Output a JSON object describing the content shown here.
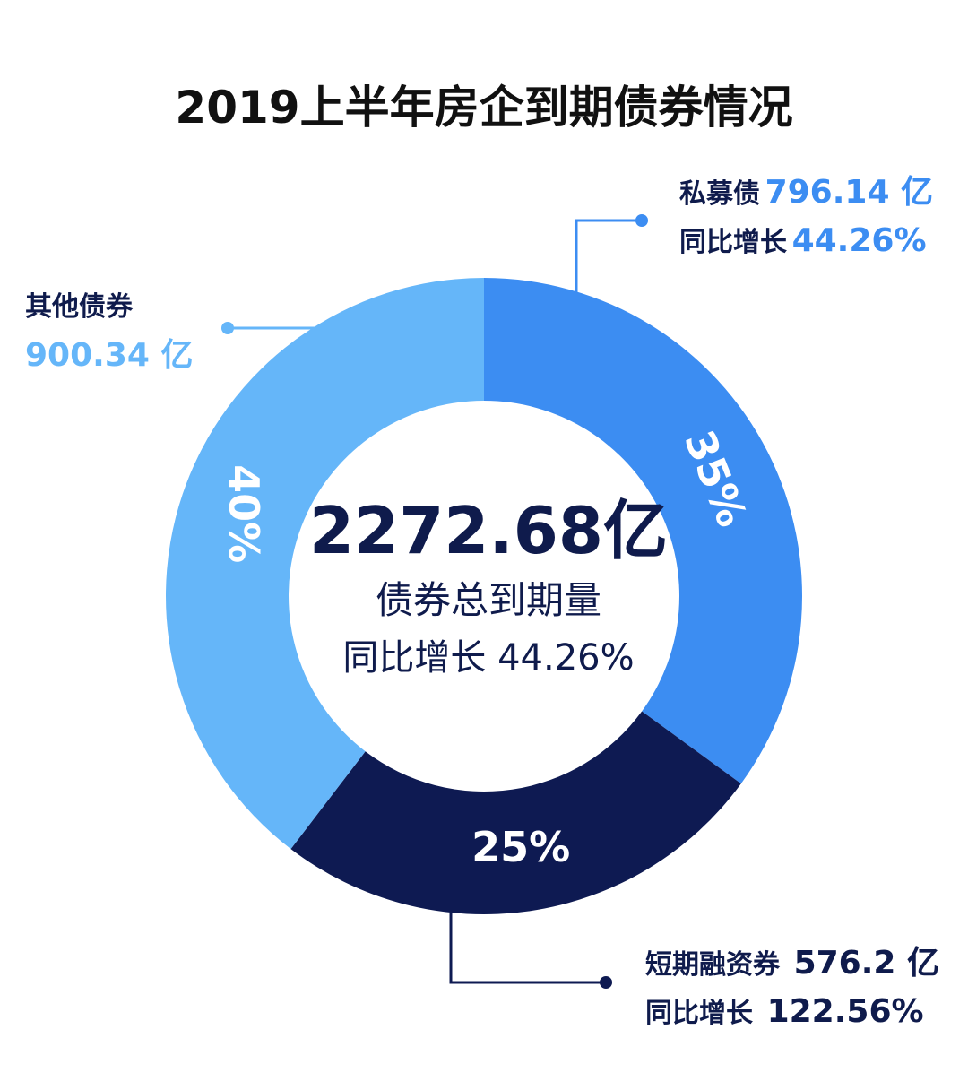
{
  "title": "2019上半年房企到期债券情况",
  "center": {
    "total": "2272.68亿",
    "subtitle": "债券总到期量",
    "yoy": "同比增长 44.26%"
  },
  "colors": {
    "private_placement": "#3c8df2",
    "short_term": "#0e1a52",
    "other": "#65b6f9",
    "label_dark": "#0f1b4c"
  },
  "chart_data": {
    "type": "pie",
    "donut": true,
    "start": "12 o'clock",
    "direction": "clockwise",
    "series": [
      {
        "name": "私募债",
        "value": 796.14,
        "unit": "亿",
        "percent_label": "35%",
        "yoy_label": "同比增长",
        "yoy": "44.26%",
        "value_text": "796.14 亿",
        "color": "#3c8df2"
      },
      {
        "name": "短期融资券",
        "value": 576.2,
        "unit": "亿",
        "percent_label": "25%",
        "yoy_label": "同比增长",
        "yoy": "122.56%",
        "value_text": "576.2 亿",
        "color": "#0e1a52"
      },
      {
        "name": "其他债券",
        "value": 900.34,
        "unit": "亿",
        "percent_label": "40%",
        "value_text": "900.34 亿",
        "color": "#65b6f9"
      }
    ]
  }
}
